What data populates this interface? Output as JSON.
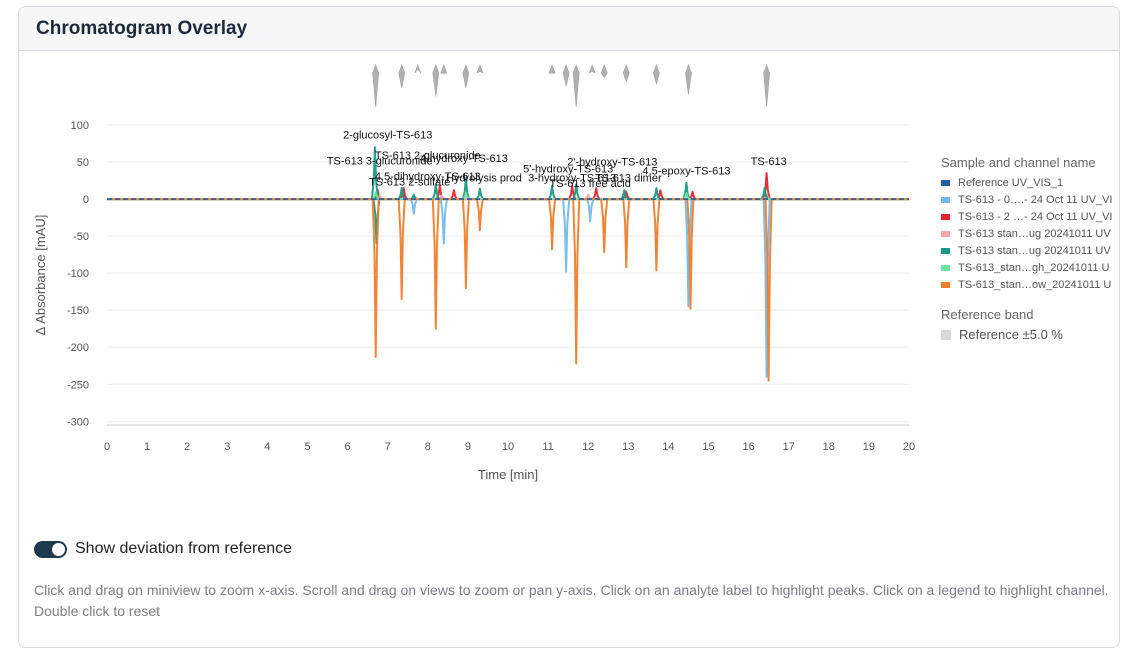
{
  "card": {
    "title": "Chromatogram Overlay"
  },
  "toggle": {
    "label": "Show deviation from reference",
    "checked": true
  },
  "hint": "Click and drag on miniview to zoom x-axis. Scroll and drag on views to zoom or pan y-axis. Click on an analyte label to highlight peaks. Click on a legend to highlight channel. Double click to reset",
  "legend": {
    "title": "Sample and channel name",
    "items": [
      {
        "label": "Reference UV_VIS_1",
        "color": "#1f5fa8"
      },
      {
        "label": "TS-613 - 0….- 24 Oct 11 UV_VI",
        "color": "#74b9ea"
      },
      {
        "label": "TS-613 - 2 …- 24 Oct 11 UV_VI",
        "color": "#e3272f"
      },
      {
        "label": "TS-613 stan…ug 20241011 UV",
        "color": "#f4a7a7"
      },
      {
        "label": "TS-613 stan…ug 20241011 UV",
        "color": "#1a9a84"
      },
      {
        "label": "TS-613_stan…gh_20241011 U",
        "color": "#6fe3a0"
      },
      {
        "label": "TS-613_stan…ow_20241011 U",
        "color": "#f07e2c"
      }
    ],
    "band_title": "Reference band",
    "band_item": {
      "label": "Reference ±5.0 %",
      "color": "#d9d9d9"
    }
  },
  "chart_data": {
    "type": "line",
    "xlabel": "Time [min]",
    "ylabel": "Δ Absorbance [mAU]",
    "xlim": [
      0,
      20
    ],
    "ylim": [
      -305,
      100
    ],
    "xticks": [
      0,
      1,
      2,
      3,
      4,
      5,
      6,
      7,
      8,
      9,
      10,
      11,
      12,
      13,
      14,
      15,
      16,
      17,
      18,
      19,
      20
    ],
    "yticks": [
      100,
      50,
      0,
      -50,
      -100,
      -150,
      -200,
      -250,
      -300
    ],
    "grid": true,
    "legend_position": "right",
    "peak_width": 0.03,
    "series": [
      {
        "name": "Reference UV_VIS_1",
        "color": "#1f5fa8",
        "style": "dashed",
        "peaks": []
      },
      {
        "name": "TS-613 - 0….- 24 Oct 11 UV_VI",
        "color": "#74b9ea",
        "peaks": [
          [
            7.65,
            -20
          ],
          [
            8.4,
            -60
          ],
          [
            11.45,
            -98
          ],
          [
            12.05,
            -30
          ],
          [
            14.5,
            -145
          ],
          [
            16.45,
            -240
          ]
        ]
      },
      {
        "name": "TS-613 - 2 …- 24 Oct 11 UV_VI",
        "color": "#e3272f",
        "peaks": [
          [
            6.75,
            12
          ],
          [
            7.4,
            15
          ],
          [
            8.3,
            18
          ],
          [
            8.65,
            12
          ],
          [
            11.6,
            18
          ],
          [
            12.2,
            15
          ],
          [
            12.95,
            10
          ],
          [
            13.8,
            12
          ],
          [
            14.6,
            10
          ],
          [
            16.45,
            35
          ]
        ]
      },
      {
        "name": "TS-613 stan…ug 20241011 UV",
        "color": "#f4a7a7",
        "peaks": [
          [
            6.8,
            5
          ],
          [
            8.35,
            5
          ],
          [
            12.0,
            6
          ],
          [
            16.45,
            6
          ]
        ]
      },
      {
        "name": "TS-613 stan…ug 20241011 UV",
        "color": "#1a9a84",
        "peaks": [
          [
            6.68,
            70
          ],
          [
            6.72,
            -60
          ],
          [
            7.35,
            15
          ],
          [
            7.65,
            6
          ],
          [
            8.2,
            20
          ],
          [
            8.95,
            28
          ],
          [
            9.3,
            14
          ],
          [
            11.1,
            18
          ],
          [
            11.7,
            20
          ],
          [
            12.9,
            12
          ],
          [
            13.7,
            15
          ],
          [
            14.45,
            22
          ],
          [
            16.4,
            15
          ]
        ]
      },
      {
        "name": "TS-613_stan…gh_20241011 U",
        "color": "#6fe3a0",
        "peaks": [
          [
            6.7,
            10
          ],
          [
            8.95,
            8
          ],
          [
            14.45,
            8
          ]
        ]
      },
      {
        "name": "TS-613_stan…ow_20241011 U",
        "color": "#f07e2c",
        "peaks": [
          [
            6.7,
            -213
          ],
          [
            7.35,
            -135
          ],
          [
            8.2,
            -175
          ],
          [
            8.95,
            -120
          ],
          [
            9.3,
            -42
          ],
          [
            11.1,
            -68
          ],
          [
            11.7,
            -222
          ],
          [
            12.4,
            -72
          ],
          [
            12.95,
            -92
          ],
          [
            13.7,
            -96
          ],
          [
            14.55,
            -148
          ],
          [
            16.5,
            -245
          ]
        ]
      }
    ],
    "annotations": [
      {
        "text": "2-glucosyl-TS-613",
        "x": 7.0,
        "y": 82
      },
      {
        "text": "TS-613 2-glucuronide",
        "x": 8.0,
        "y": 54
      },
      {
        "text": "TS-613 3-glucuronide",
        "x": 6.8,
        "y": 47
      },
      {
        "text": "4-hydroxy-TS-613",
        "x": 8.9,
        "y": 50
      },
      {
        "text": "2'-hydroxy-TS-613",
        "x": 12.6,
        "y": 45
      },
      {
        "text": "5'-hydroxy-TS-613",
        "x": 11.5,
        "y": 36
      },
      {
        "text": "4,5-epoxy-TS-613",
        "x": 14.45,
        "y": 33
      },
      {
        "text": "4,5-dihydroxy-TS-613",
        "x": 8.0,
        "y": 26
      },
      {
        "text": "Hydrolysis prod",
        "x": 9.4,
        "y": 24
      },
      {
        "text": "3-hydroxy-TS-613",
        "x": 11.6,
        "y": 24
      },
      {
        "text": "TS-613 dimer",
        "x": 13.0,
        "y": 24
      },
      {
        "text": "TS-613 2-sulfate",
        "x": 7.55,
        "y": 18
      },
      {
        "text": "TS-613 free acid",
        "x": 12.05,
        "y": 16
      },
      {
        "text": "TS-613",
        "x": 16.5,
        "y": 46
      }
    ],
    "reference_band_pct": 5.0,
    "miniview_peaks": [
      {
        "x": 6.7,
        "h": 1.0
      },
      {
        "x": 7.35,
        "h": 0.55
      },
      {
        "x": 7.75,
        "h": 0.1
      },
      {
        "x": 8.2,
        "h": 0.75
      },
      {
        "x": 8.4,
        "h": 0.2
      },
      {
        "x": 8.95,
        "h": 0.55
      },
      {
        "x": 9.3,
        "h": 0.15
      },
      {
        "x": 11.1,
        "h": 0.2
      },
      {
        "x": 11.45,
        "h": 0.5
      },
      {
        "x": 11.7,
        "h": 1.0
      },
      {
        "x": 12.1,
        "h": 0.15
      },
      {
        "x": 12.4,
        "h": 0.3
      },
      {
        "x": 12.95,
        "h": 0.4
      },
      {
        "x": 13.7,
        "h": 0.45
      },
      {
        "x": 14.5,
        "h": 0.7
      },
      {
        "x": 16.45,
        "h": 1.0
      }
    ]
  }
}
